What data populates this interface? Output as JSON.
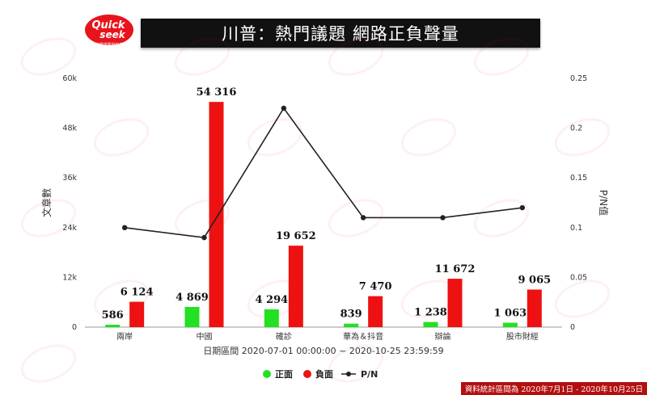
{
  "header": {
    "title": "川普：熱門議題 網路正負聲量",
    "logo_main": "Quick",
    "logo_sub": "seek",
    "logo_tagline": "熱門議題資料庫"
  },
  "footer": {
    "note": "資料統計區間為 2020年7月1日 - 2020年10月25日"
  },
  "colors": {
    "positive": "#22e022",
    "negative": "#ee1111",
    "pn_line": "#222222",
    "title_bg": "#111111",
    "footer_bg": "#b40f0f"
  },
  "chart_data": {
    "type": "bar",
    "categories": [
      "兩岸",
      "中國",
      "確診",
      "華為＆抖音",
      "辯論",
      "股市財經"
    ],
    "series": [
      {
        "name": "正面",
        "type": "bar",
        "axis": "left",
        "values": [
          586,
          4869,
          4294,
          839,
          1238,
          1063
        ],
        "labels": [
          "586",
          "4 869",
          "4 294",
          "839",
          "1 238",
          "1 063"
        ]
      },
      {
        "name": "負面",
        "type": "bar",
        "axis": "left",
        "values": [
          6124,
          54316,
          19652,
          7470,
          11672,
          9065
        ],
        "labels": [
          "6 124",
          "54 316",
          "19 652",
          "7 470",
          "11 672",
          "9 065"
        ]
      },
      {
        "name": "P/N",
        "type": "line",
        "axis": "right",
        "values": [
          0.1,
          0.09,
          0.22,
          0.11,
          0.11,
          0.12
        ]
      }
    ],
    "ylabel": "文章數",
    "y2label": "P/N值",
    "ylim": [
      0,
      60000
    ],
    "y2lim": [
      0,
      0.25
    ],
    "yticks": [
      "0",
      "12k",
      "24k",
      "36k",
      "48k",
      "60k"
    ],
    "y2ticks": [
      "0",
      "0.05",
      "0.1",
      "0.15",
      "0.2",
      "0.25"
    ],
    "xlabel": "日期區間 2020-07-01 00:00:00 ~ 2020-10-25 23:59:59",
    "legend_position": "bottom",
    "grid": false
  }
}
